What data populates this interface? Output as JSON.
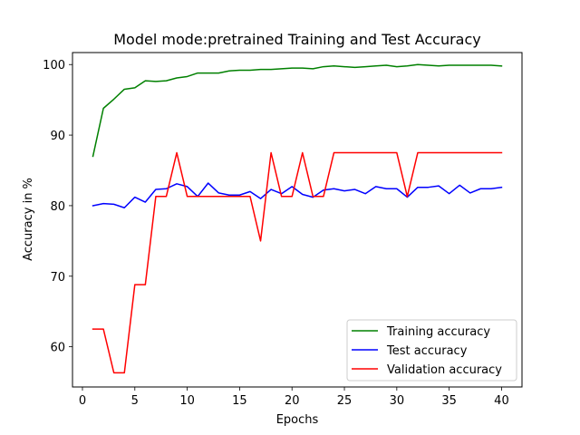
{
  "chart_data": {
    "type": "line",
    "title": "Model mode:pretrained Training and Test Accuracy",
    "xlabel": "Epochs",
    "ylabel": "Accuracy in %",
    "xlim": [
      -0.95,
      41.95
    ],
    "ylim": [
      54.3,
      101.7
    ],
    "xticks": [
      0,
      5,
      10,
      15,
      20,
      25,
      30,
      35,
      40
    ],
    "yticks": [
      60,
      70,
      80,
      90,
      100
    ],
    "grid": false,
    "legend_position": "lower-right",
    "x": [
      1,
      2,
      3,
      4,
      5,
      6,
      7,
      8,
      9,
      10,
      11,
      12,
      13,
      14,
      15,
      16,
      17,
      18,
      19,
      20,
      21,
      22,
      23,
      24,
      25,
      26,
      27,
      28,
      29,
      30,
      31,
      32,
      33,
      34,
      35,
      36,
      37,
      38,
      39,
      40
    ],
    "series": [
      {
        "name": "Training accuracy",
        "color": "#008000",
        "values": [
          87.0,
          93.8,
          95.1,
          96.5,
          96.7,
          97.7,
          97.6,
          97.7,
          98.1,
          98.3,
          98.8,
          98.8,
          98.8,
          99.1,
          99.2,
          99.2,
          99.3,
          99.3,
          99.4,
          99.5,
          99.5,
          99.4,
          99.7,
          99.8,
          99.7,
          99.6,
          99.7,
          99.8,
          99.9,
          99.7,
          99.8,
          100.0,
          99.9,
          99.8,
          99.9,
          99.9,
          99.9,
          99.9,
          99.9,
          99.8
        ]
      },
      {
        "name": "Test accuracy",
        "color": "#0000ff",
        "values": [
          80.0,
          80.3,
          80.2,
          79.7,
          81.2,
          80.5,
          82.3,
          82.4,
          83.1,
          82.7,
          81.3,
          83.2,
          81.8,
          81.5,
          81.5,
          82.0,
          81.0,
          82.3,
          81.7,
          82.7,
          81.6,
          81.2,
          82.2,
          82.4,
          82.1,
          82.3,
          81.7,
          82.7,
          82.4,
          82.4,
          81.2,
          82.6,
          82.6,
          82.8,
          81.7,
          82.9,
          81.8,
          82.4,
          82.4,
          82.6
        ]
      },
      {
        "name": "Validation accuracy",
        "color": "#ff0000",
        "values": [
          62.5,
          62.5,
          56.3,
          56.3,
          68.8,
          68.8,
          81.3,
          81.3,
          87.5,
          81.3,
          81.3,
          81.3,
          81.3,
          81.3,
          81.3,
          81.3,
          75.0,
          87.5,
          81.3,
          81.3,
          87.5,
          81.3,
          81.3,
          87.5,
          87.5,
          87.5,
          87.5,
          87.5,
          87.5,
          87.5,
          81.3,
          87.5,
          87.5,
          87.5,
          87.5,
          87.5,
          87.5,
          87.5,
          87.5,
          87.5
        ]
      }
    ]
  }
}
